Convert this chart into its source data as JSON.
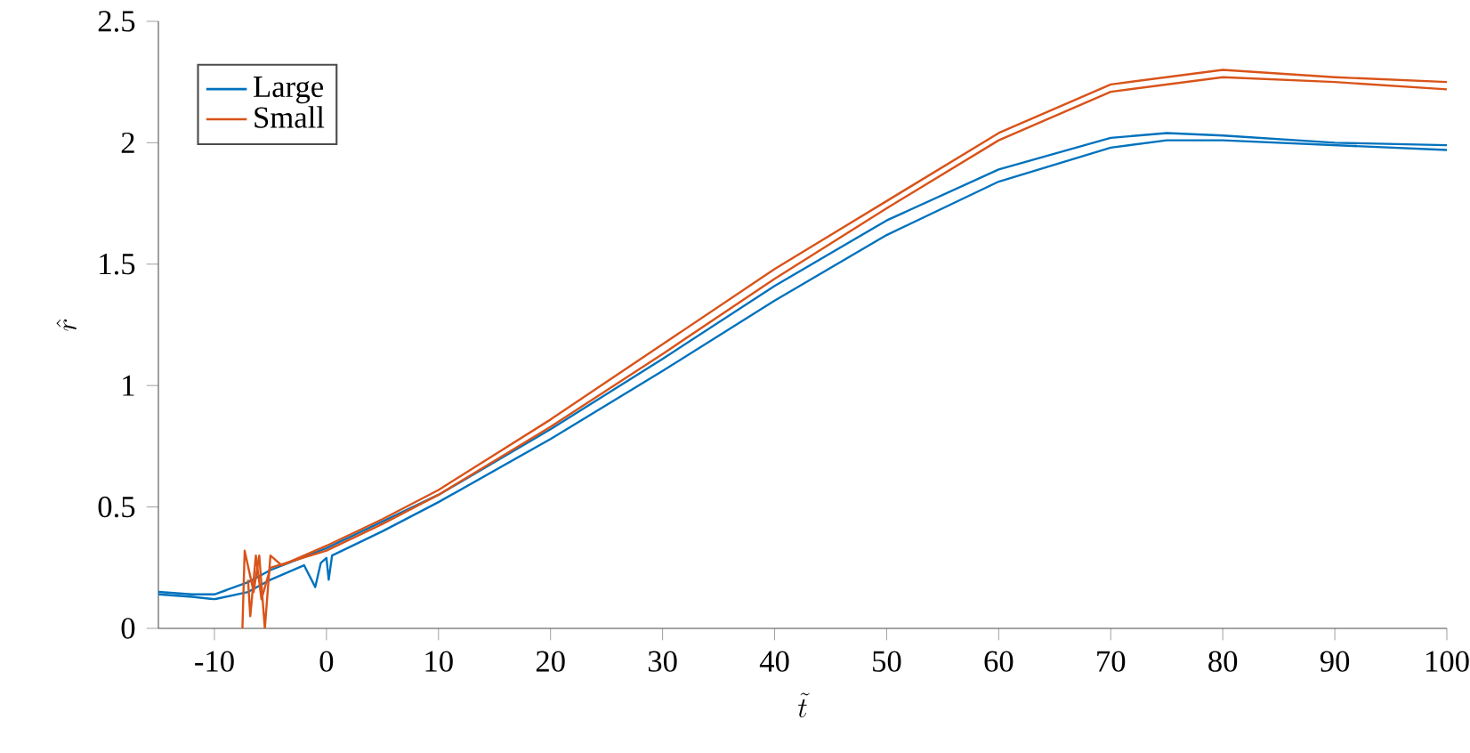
{
  "chart_data": {
    "type": "line",
    "xlabel": "\\tilde{t}",
    "ylabel": "\\hat{r}",
    "xlim": [
      -15,
      100
    ],
    "ylim": [
      0,
      2.5
    ],
    "xticks": [
      -10,
      0,
      10,
      20,
      30,
      40,
      50,
      60,
      70,
      80,
      90,
      100
    ],
    "yticks": [
      0,
      0.5,
      1,
      1.5,
      2,
      2.5
    ],
    "legend": "top left",
    "series": [
      {
        "name": "Large",
        "color": "#0072bd",
        "x": [
          -15,
          -12,
          -10,
          -7,
          -5,
          -2,
          -1,
          -0.5,
          0,
          0.2,
          0.5,
          5,
          10,
          20,
          30,
          40,
          50,
          60,
          70,
          75,
          80,
          90,
          100
        ],
        "values": [
          0.14,
          0.13,
          0.12,
          0.15,
          0.2,
          0.26,
          0.17,
          0.27,
          0.29,
          0.2,
          0.3,
          0.4,
          0.52,
          0.78,
          1.06,
          1.35,
          1.62,
          1.84,
          1.98,
          2.01,
          2.01,
          1.99,
          1.97
        ]
      },
      {
        "color": "#0072bd",
        "x": [
          -15,
          -12,
          -10,
          -7,
          -5,
          0,
          5,
          10,
          20,
          30,
          40,
          50,
          60,
          70,
          75,
          80,
          90,
          100
        ],
        "values": [
          0.15,
          0.14,
          0.14,
          0.19,
          0.24,
          0.33,
          0.44,
          0.55,
          0.82,
          1.11,
          1.41,
          1.68,
          1.89,
          2.02,
          2.04,
          2.03,
          2.0,
          1.99
        ]
      },
      {
        "name": "Small",
        "color": "#d95319",
        "x": [
          -7.5,
          -7.3,
          -6.5,
          -6,
          -5.5,
          -5,
          -4,
          0,
          5,
          10,
          20,
          30,
          40,
          50,
          60,
          70,
          80,
          90,
          100
        ],
        "values": [
          0.0,
          0.32,
          0.15,
          0.3,
          0.0,
          0.3,
          0.26,
          0.34,
          0.45,
          0.57,
          0.86,
          1.17,
          1.48,
          1.76,
          2.04,
          2.24,
          2.3,
          2.27,
          2.25
        ]
      },
      {
        "color": "#d95319",
        "x": [
          -7,
          -6.8,
          -6.3,
          -5.8,
          -5,
          0,
          5,
          10,
          20,
          30,
          40,
          50,
          60,
          70,
          80,
          90,
          100
        ],
        "values": [
          0.2,
          0.05,
          0.3,
          0.12,
          0.25,
          0.32,
          0.43,
          0.55,
          0.83,
          1.13,
          1.44,
          1.73,
          2.01,
          2.21,
          2.27,
          2.25,
          2.22
        ]
      }
    ]
  }
}
